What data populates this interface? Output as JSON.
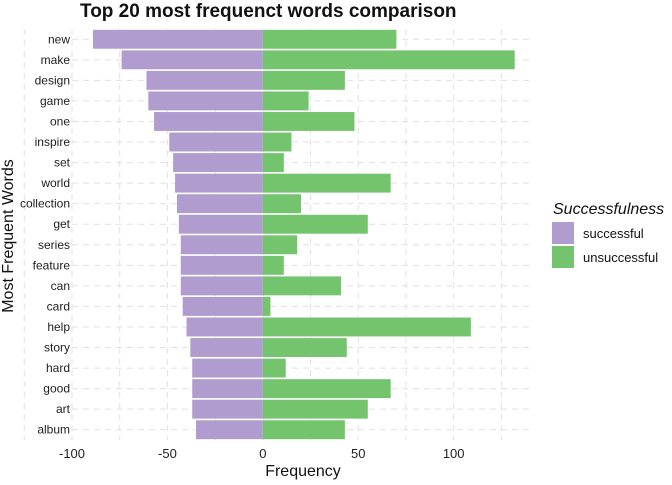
{
  "chart_data": {
    "type": "bar",
    "orientation": "horizontal",
    "title": "Top 20 most frequenct words comparison",
    "xlabel": "Frequency",
    "ylabel": "Most Frequent Words",
    "xlim": [
      -100,
      140
    ],
    "xticks": [
      -100,
      -50,
      0,
      50,
      100
    ],
    "xtick_labels": [
      "-100",
      "-50",
      "0",
      "50",
      "100"
    ],
    "grid": true,
    "legend": {
      "title": "Successfulness",
      "placement": "right"
    },
    "categories": [
      "new",
      "make",
      "design",
      "game",
      "one",
      "inspire",
      "set",
      "world",
      "collection",
      "get",
      "series",
      "feature",
      "can",
      "card",
      "help",
      "story",
      "hard",
      "good",
      "art",
      "album"
    ],
    "series": [
      {
        "name": "successful",
        "color": "#b09ccf",
        "values": [
          -89,
          -74,
          -61,
          -60,
          -57,
          -49,
          -47,
          -46,
          -45,
          -44,
          -43,
          -43,
          -43,
          -42,
          -40,
          -38,
          -37,
          -37,
          -37,
          -35
        ]
      },
      {
        "name": "unsuccessful",
        "color": "#74c46e",
        "values": [
          70,
          132,
          43,
          24,
          48,
          15,
          11,
          67,
          20,
          55,
          18,
          11,
          41,
          4,
          109,
          44,
          12,
          67,
          55,
          43
        ]
      }
    ]
  }
}
